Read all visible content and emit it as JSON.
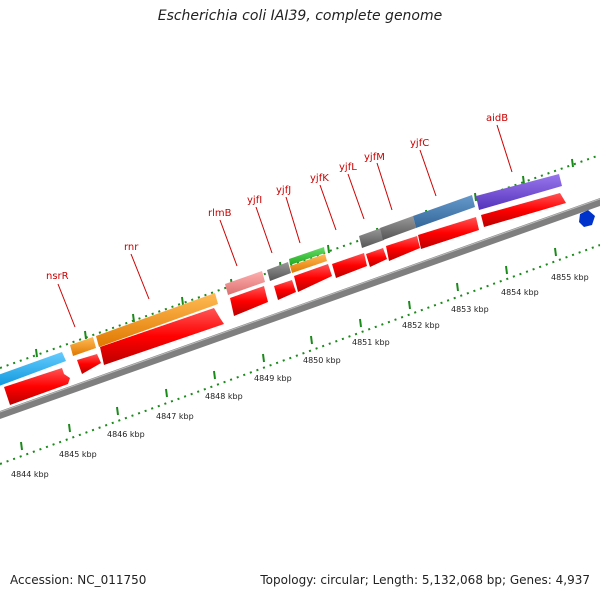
{
  "title": "Escherichia coli IAI39, complete genome",
  "accession": "Accession: NC_011750",
  "summary": "Topology: circular; Length: 5,132,068 bp; Genes: 4,937",
  "colors": {
    "cds": "#ff0000",
    "backbone": "#808080",
    "tick_green": "#1a8a1a",
    "gene_label": "#cc0000",
    "blue_marker": "#0033cc"
  },
  "gene_labels": [
    {
      "text": "nsrR"
    },
    {
      "text": "rnr"
    },
    {
      "text": "rlmB"
    },
    {
      "text": "yjfI"
    },
    {
      "text": "yjfJ"
    },
    {
      "text": "yjfK"
    },
    {
      "text": "yjfL"
    },
    {
      "text": "yjfM"
    },
    {
      "text": "yjfC"
    },
    {
      "text": "aidB"
    }
  ],
  "kbp_labels": [
    "4844 kbp",
    "4845 kbp",
    "4846 kbp",
    "4847 kbp",
    "4848 kbp",
    "4849 kbp",
    "4850 kbp",
    "4851 kbp",
    "4852 kbp",
    "4853 kbp",
    "4854 kbp",
    "4855 kbp"
  ],
  "feature_colors": {
    "cyan": "#22aaee",
    "orange": "#f08a10",
    "pink": "#ee8888",
    "gray": "#6a6a6a",
    "green": "#33bb33",
    "steelblue": "#4477aa",
    "purple": "#7755cc"
  }
}
